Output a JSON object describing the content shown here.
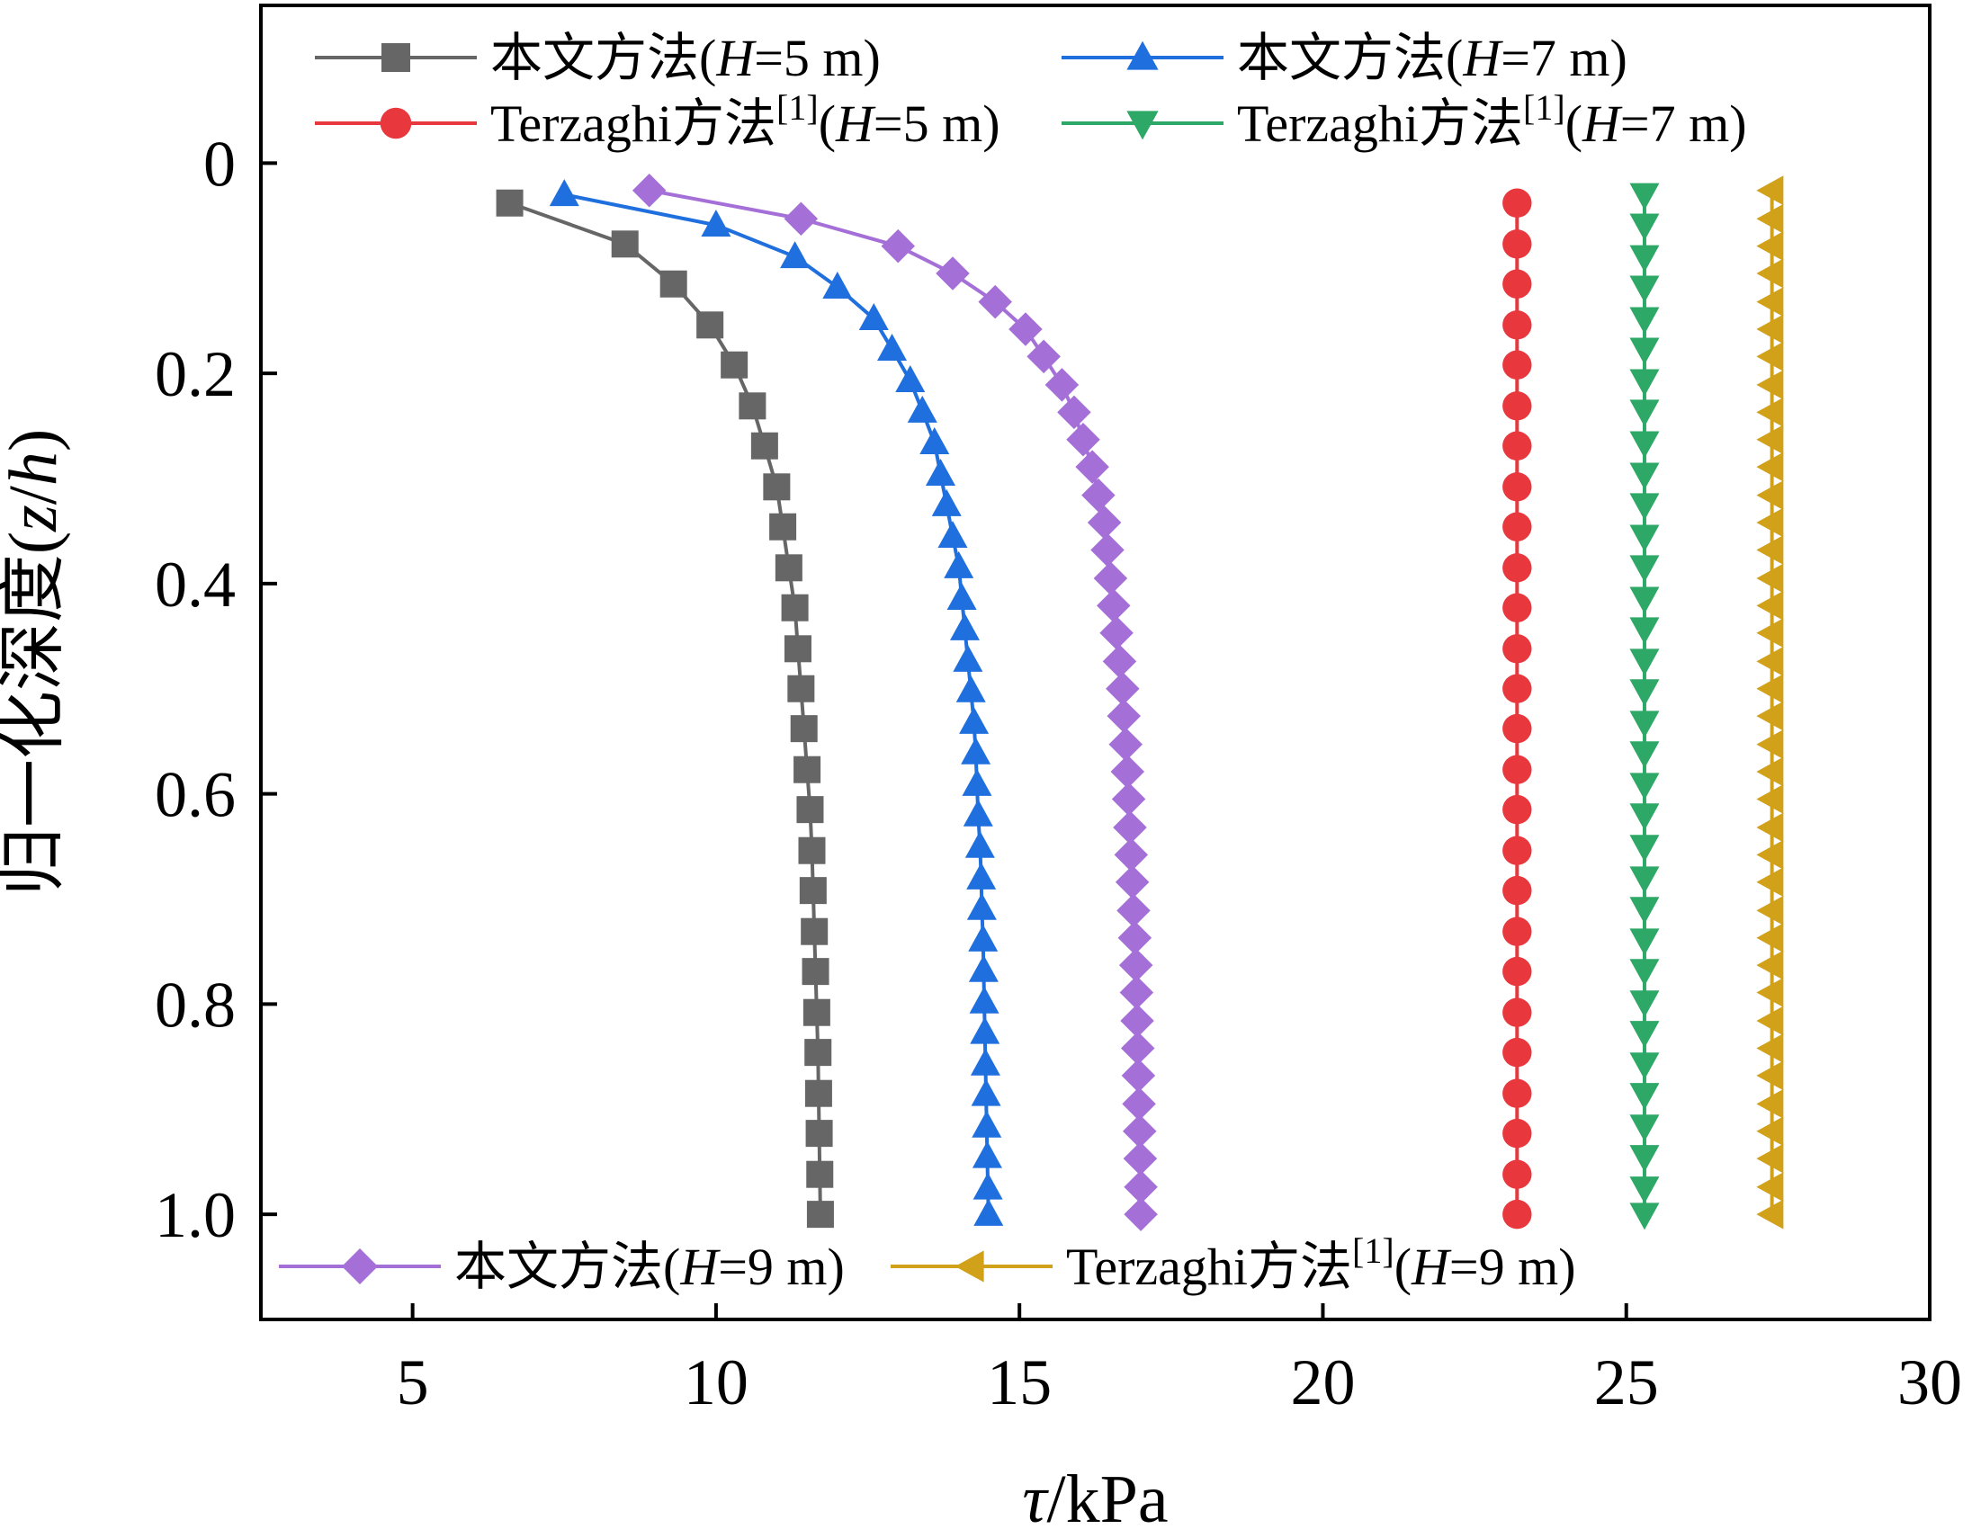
{
  "chart_data": {
    "type": "scatter",
    "title": "",
    "xlabel": "τ/kPa",
    "ylabel": "归一化深度(z/h)",
    "xlim": [
      2.5,
      30
    ],
    "ylim": [
      1.1,
      -0.15
    ],
    "y_axis_inverted": true,
    "grid": false,
    "x_ticks": [
      5,
      10,
      15,
      20,
      25,
      30
    ],
    "x_tick_labels": [
      "5",
      "10",
      "15",
      "20",
      "25",
      "30"
    ],
    "y_ticks": [
      0,
      0.2,
      0.4,
      0.6,
      0.8,
      1.0
    ],
    "y_tick_labels": [
      "0",
      "0.2",
      "0.4",
      "0.6",
      "0.8",
      "1.0"
    ],
    "legend_placement": "top and bottom inside",
    "series": [
      {
        "name": "本文方法(H=5 m)",
        "label_prefix": "本文方法(",
        "label_var": "H",
        "label_suffix": "=5 m)",
        "label_ref": "",
        "color": "#666666",
        "marker": "square",
        "connected": true,
        "points": [
          [
            6.6,
            0.038
          ],
          [
            8.5,
            0.077
          ],
          [
            9.3,
            0.115
          ],
          [
            9.9,
            0.154
          ],
          [
            10.3,
            0.192
          ],
          [
            10.6,
            0.231
          ],
          [
            10.8,
            0.269
          ],
          [
            11.0,
            0.308
          ],
          [
            11.1,
            0.346
          ],
          [
            11.2,
            0.385
          ],
          [
            11.3,
            0.423
          ],
          [
            11.35,
            0.462
          ],
          [
            11.4,
            0.5
          ],
          [
            11.45,
            0.538
          ],
          [
            11.5,
            0.577
          ],
          [
            11.55,
            0.615
          ],
          [
            11.58,
            0.654
          ],
          [
            11.6,
            0.692
          ],
          [
            11.62,
            0.731
          ],
          [
            11.64,
            0.769
          ],
          [
            11.66,
            0.808
          ],
          [
            11.68,
            0.846
          ],
          [
            11.69,
            0.885
          ],
          [
            11.7,
            0.923
          ],
          [
            11.71,
            0.962
          ],
          [
            11.72,
            1.0
          ]
        ]
      },
      {
        "name": "本文方法(H=7 m)",
        "label_prefix": "本文方法(",
        "label_var": "H",
        "label_suffix": "=7 m)",
        "label_ref": "",
        "color": "#1f6fde",
        "marker": "triangle-up",
        "connected": true,
        "points": [
          [
            7.5,
            0.03
          ],
          [
            10.0,
            0.059
          ],
          [
            11.3,
            0.089
          ],
          [
            12.0,
            0.118
          ],
          [
            12.6,
            0.148
          ],
          [
            12.9,
            0.177
          ],
          [
            13.2,
            0.207
          ],
          [
            13.4,
            0.236
          ],
          [
            13.6,
            0.266
          ],
          [
            13.7,
            0.296
          ],
          [
            13.8,
            0.325
          ],
          [
            13.9,
            0.355
          ],
          [
            14.0,
            0.384
          ],
          [
            14.05,
            0.414
          ],
          [
            14.1,
            0.443
          ],
          [
            14.15,
            0.473
          ],
          [
            14.2,
            0.502
          ],
          [
            14.25,
            0.532
          ],
          [
            14.28,
            0.561
          ],
          [
            14.3,
            0.591
          ],
          [
            14.32,
            0.62
          ],
          [
            14.35,
            0.65
          ],
          [
            14.37,
            0.68
          ],
          [
            14.38,
            0.709
          ],
          [
            14.4,
            0.739
          ],
          [
            14.41,
            0.768
          ],
          [
            14.42,
            0.798
          ],
          [
            14.43,
            0.827
          ],
          [
            14.44,
            0.857
          ],
          [
            14.45,
            0.886
          ],
          [
            14.46,
            0.916
          ],
          [
            14.47,
            0.945
          ],
          [
            14.48,
            0.975
          ],
          [
            14.49,
            1.0
          ]
        ]
      },
      {
        "name": "Terzaghi方法[1](H=5 m)",
        "label_prefix": "Terzaghi方法",
        "label_var": "H",
        "label_suffix": "=5 m)",
        "label_ref": "[1]",
        "color": "#e8383d",
        "marker": "circle",
        "connected": true,
        "points": [
          [
            23.2,
            0.038
          ],
          [
            23.2,
            0.077
          ],
          [
            23.2,
            0.115
          ],
          [
            23.2,
            0.154
          ],
          [
            23.2,
            0.192
          ],
          [
            23.2,
            0.231
          ],
          [
            23.2,
            0.269
          ],
          [
            23.2,
            0.308
          ],
          [
            23.2,
            0.346
          ],
          [
            23.2,
            0.385
          ],
          [
            23.2,
            0.423
          ],
          [
            23.2,
            0.462
          ],
          [
            23.2,
            0.5
          ],
          [
            23.2,
            0.538
          ],
          [
            23.2,
            0.577
          ],
          [
            23.2,
            0.615
          ],
          [
            23.2,
            0.654
          ],
          [
            23.2,
            0.692
          ],
          [
            23.2,
            0.731
          ],
          [
            23.2,
            0.769
          ],
          [
            23.2,
            0.808
          ],
          [
            23.2,
            0.846
          ],
          [
            23.2,
            0.885
          ],
          [
            23.2,
            0.923
          ],
          [
            23.2,
            0.962
          ],
          [
            23.2,
            1.0
          ]
        ]
      },
      {
        "name": "Terzaghi方法[1](H=7 m)",
        "label_prefix": "Terzaghi方法",
        "label_var": "H",
        "label_suffix": "=7 m)",
        "label_ref": "[1]",
        "color": "#2ea866",
        "marker": "triangle-down",
        "connected": true,
        "points": [
          [
            25.3,
            0.03
          ],
          [
            25.3,
            0.059
          ],
          [
            25.3,
            0.089
          ],
          [
            25.3,
            0.118
          ],
          [
            25.3,
            0.148
          ],
          [
            25.3,
            0.177
          ],
          [
            25.3,
            0.207
          ],
          [
            25.3,
            0.236
          ],
          [
            25.3,
            0.266
          ],
          [
            25.3,
            0.296
          ],
          [
            25.3,
            0.325
          ],
          [
            25.3,
            0.355
          ],
          [
            25.3,
            0.384
          ],
          [
            25.3,
            0.414
          ],
          [
            25.3,
            0.443
          ],
          [
            25.3,
            0.473
          ],
          [
            25.3,
            0.502
          ],
          [
            25.3,
            0.532
          ],
          [
            25.3,
            0.561
          ],
          [
            25.3,
            0.591
          ],
          [
            25.3,
            0.62
          ],
          [
            25.3,
            0.65
          ],
          [
            25.3,
            0.68
          ],
          [
            25.3,
            0.709
          ],
          [
            25.3,
            0.739
          ],
          [
            25.3,
            0.768
          ],
          [
            25.3,
            0.798
          ],
          [
            25.3,
            0.827
          ],
          [
            25.3,
            0.857
          ],
          [
            25.3,
            0.886
          ],
          [
            25.3,
            0.916
          ],
          [
            25.3,
            0.945
          ],
          [
            25.3,
            0.975
          ],
          [
            25.3,
            1.0
          ]
        ]
      },
      {
        "name": "本文方法(H=9 m)",
        "label_prefix": "本文方法(",
        "label_var": "H",
        "label_suffix": "=9 m)",
        "label_ref": "",
        "color": "#a56fd8",
        "marker": "diamond",
        "connected": true,
        "points": [
          [
            8.9,
            0.026
          ],
          [
            11.4,
            0.053
          ],
          [
            13.0,
            0.079
          ],
          [
            13.9,
            0.105
          ],
          [
            14.6,
            0.132
          ],
          [
            15.1,
            0.158
          ],
          [
            15.4,
            0.184
          ],
          [
            15.7,
            0.211
          ],
          [
            15.9,
            0.237
          ],
          [
            16.05,
            0.263
          ],
          [
            16.2,
            0.289
          ],
          [
            16.3,
            0.316
          ],
          [
            16.4,
            0.342
          ],
          [
            16.45,
            0.368
          ],
          [
            16.5,
            0.395
          ],
          [
            16.55,
            0.421
          ],
          [
            16.6,
            0.447
          ],
          [
            16.65,
            0.474
          ],
          [
            16.7,
            0.5
          ],
          [
            16.72,
            0.526
          ],
          [
            16.75,
            0.553
          ],
          [
            16.78,
            0.579
          ],
          [
            16.8,
            0.605
          ],
          [
            16.82,
            0.632
          ],
          [
            16.84,
            0.658
          ],
          [
            16.86,
            0.684
          ],
          [
            16.88,
            0.711
          ],
          [
            16.9,
            0.737
          ],
          [
            16.92,
            0.763
          ],
          [
            16.93,
            0.789
          ],
          [
            16.94,
            0.816
          ],
          [
            16.95,
            0.842
          ],
          [
            16.96,
            0.868
          ],
          [
            16.97,
            0.895
          ],
          [
            16.98,
            0.921
          ],
          [
            16.99,
            0.947
          ],
          [
            17.0,
            0.974
          ],
          [
            17.0,
            1.0
          ]
        ]
      },
      {
        "name": "Terzaghi方法[1](H=9 m)",
        "label_prefix": "Terzaghi方法",
        "label_var": "H",
        "label_suffix": "=9 m)",
        "label_ref": "[1]",
        "color": "#d1a11a",
        "marker": "triangle-left",
        "connected": true,
        "points": [
          [
            27.4,
            0.026
          ],
          [
            27.4,
            0.053
          ],
          [
            27.4,
            0.079
          ],
          [
            27.4,
            0.105
          ],
          [
            27.4,
            0.132
          ],
          [
            27.4,
            0.158
          ],
          [
            27.4,
            0.184
          ],
          [
            27.4,
            0.211
          ],
          [
            27.4,
            0.237
          ],
          [
            27.4,
            0.263
          ],
          [
            27.4,
            0.289
          ],
          [
            27.4,
            0.316
          ],
          [
            27.4,
            0.342
          ],
          [
            27.4,
            0.368
          ],
          [
            27.4,
            0.395
          ],
          [
            27.4,
            0.421
          ],
          [
            27.4,
            0.447
          ],
          [
            27.4,
            0.474
          ],
          [
            27.4,
            0.5
          ],
          [
            27.4,
            0.526
          ],
          [
            27.4,
            0.553
          ],
          [
            27.4,
            0.579
          ],
          [
            27.4,
            0.605
          ],
          [
            27.4,
            0.632
          ],
          [
            27.4,
            0.658
          ],
          [
            27.4,
            0.684
          ],
          [
            27.4,
            0.711
          ],
          [
            27.4,
            0.737
          ],
          [
            27.4,
            0.763
          ],
          [
            27.4,
            0.789
          ],
          [
            27.4,
            0.816
          ],
          [
            27.4,
            0.842
          ],
          [
            27.4,
            0.868
          ],
          [
            27.4,
            0.895
          ],
          [
            27.4,
            0.921
          ],
          [
            27.4,
            0.947
          ],
          [
            27.4,
            0.974
          ],
          [
            27.4,
            1.0
          ]
        ]
      }
    ]
  }
}
